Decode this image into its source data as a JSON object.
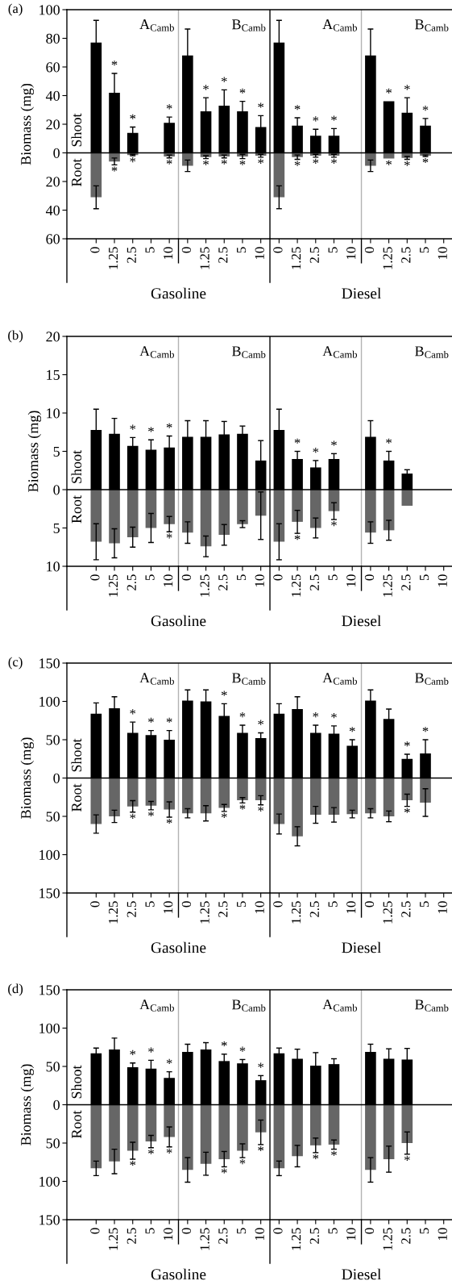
{
  "chart_data": [
    {
      "type": "bar",
      "title": "(a)",
      "ylabel": "Biomass (mg)",
      "stacked": true,
      "categories": [
        "0",
        "1.25",
        "2.5",
        "5",
        "10",
        "0",
        "1.25",
        "2.5",
        "5",
        "10",
        "0",
        "1.25",
        "2.5",
        "5",
        "10",
        "0",
        "1.25",
        "2.5",
        "5",
        "10"
      ],
      "ylim": [
        -60,
        100
      ],
      "yticks": [
        {
          "value": -60,
          "label": "60"
        },
        {
          "value": -40,
          "label": "40"
        },
        {
          "value": -20,
          "label": "20"
        },
        0,
        20,
        40,
        60,
        80,
        100
      ],
      "series": [
        {
          "name": "Shoot",
          "color": "#000000",
          "values": [
            77,
            42,
            14,
            null,
            21,
            68,
            29,
            33,
            29,
            18,
            77,
            19,
            12,
            12,
            null,
            68,
            36,
            28,
            19,
            null
          ],
          "errors": [
            15.5,
            13.5,
            4,
            null,
            4,
            18.5,
            9.5,
            11,
            7,
            8,
            15.5,
            5.5,
            4.5,
            5,
            null,
            18.5,
            null,
            10.5,
            5,
            null
          ],
          "value_labels": [
            null,
            "*",
            "*",
            null,
            "*",
            null,
            "*",
            "*",
            "*",
            "*",
            null,
            "*",
            "*",
            "*",
            null,
            null,
            "*",
            "*",
            "*",
            null
          ]
        },
        {
          "name": "Root",
          "color": "#666666",
          "values": [
            -31,
            -6,
            -1.5,
            null,
            -2.5,
            -9,
            -3,
            -2.5,
            -2.5,
            -2,
            -31,
            -3,
            -2,
            -2,
            null,
            -9,
            -4,
            -3.5,
            -2,
            null
          ],
          "errors": [
            8,
            2.4,
            0.5,
            null,
            1,
            4,
            1,
            1,
            1.5,
            1,
            8,
            1.5,
            1,
            1,
            null,
            4,
            null,
            1,
            0.5,
            null
          ],
          "value_labels": [
            null,
            "*",
            "*",
            null,
            "*",
            null,
            "*",
            "*",
            "*",
            "*",
            null,
            "*",
            "*",
            "*",
            null,
            null,
            "*",
            "*",
            "*",
            null
          ]
        }
      ],
      "ref_lines": [
        {
          "axis": "y",
          "value": 0,
          "color": "#000000"
        }
      ],
      "annotations": [
        "A$_{Camb}$",
        "B$_{Camb}$",
        "A$_{Camb}$",
        "B$_{Camb}$",
        "Gasoline",
        "Diesel"
      ]
    },
    {
      "type": "bar",
      "title": "(b)",
      "ylabel": "Biomass (mg)",
      "stacked": true,
      "categories": [
        "0",
        "1.25",
        "2.5",
        "5",
        "10",
        "0",
        "1.25",
        "2.5",
        "5",
        "10",
        "0",
        "1.25",
        "2.5",
        "5",
        "10",
        "0",
        "1.25",
        "2.5",
        "5",
        "10"
      ],
      "ylim": [
        -10,
        20
      ],
      "yticks": [
        {
          "value": -10,
          "label": "10"
        },
        {
          "value": -5,
          "label": "5"
        },
        0,
        5,
        10,
        15,
        20
      ],
      "series": [
        {
          "name": "Shoot",
          "color": "#000000",
          "values": [
            7.8,
            7.3,
            5.7,
            5.2,
            5.5,
            6.9,
            6.9,
            7.2,
            7.3,
            3.8,
            7.8,
            4.0,
            2.9,
            4.0,
            null,
            6.9,
            3.8,
            2.1,
            null,
            null
          ],
          "errors": [
            2.7,
            2.0,
            1.1,
            1.3,
            1.5,
            2.1,
            2.1,
            1.7,
            1.0,
            2.6,
            2.7,
            1.0,
            0.9,
            0.7,
            null,
            2.1,
            1.2,
            0.5,
            null,
            null
          ],
          "value_labels": [
            null,
            null,
            "*",
            "*",
            "*",
            null,
            null,
            null,
            null,
            null,
            null,
            "*",
            "*",
            "*",
            null,
            null,
            "*",
            null,
            null,
            null
          ]
        },
        {
          "name": "Root",
          "color": "#666666",
          "values": [
            -6.8,
            -7.0,
            -6.2,
            -5.0,
            -4.5,
            -5.6,
            -7.4,
            -5.9,
            -4.5,
            -3.4,
            -6.8,
            -4.2,
            -5.0,
            -2.8,
            null,
            -5.6,
            -5.3,
            -2.1,
            null,
            null
          ],
          "errors": [
            2.35,
            1.9,
            1.3,
            1.9,
            1.0,
            1.4,
            1.35,
            1.35,
            0.45,
            3.1,
            2.35,
            1.5,
            1.3,
            1.1,
            null,
            1.4,
            1.3,
            null,
            null,
            null
          ],
          "value_labels": [
            null,
            null,
            null,
            null,
            "*",
            null,
            null,
            null,
            null,
            null,
            null,
            "*",
            null,
            "*",
            null,
            null,
            null,
            null,
            null,
            null
          ]
        }
      ],
      "ref_lines": [
        {
          "axis": "y",
          "value": 0,
          "color": "#000000"
        }
      ],
      "annotations": [
        "A$_{Camb}$",
        "B$_{Camb}$",
        "A$_{Camb}$",
        "B$_{Camb}$",
        "Gasoline",
        "Diesel"
      ]
    },
    {
      "type": "bar",
      "title": "(c)",
      "ylabel": "Biomass (mg)",
      "stacked": true,
      "categories": [
        "0",
        "1.25",
        "2.5",
        "5",
        "10",
        "0",
        "1.25",
        "2.5",
        "5",
        "10",
        "0",
        "1.25",
        "2.5",
        "5",
        "10",
        "0",
        "1.25",
        "2.5",
        "5",
        "10"
      ],
      "ylim": [
        -150,
        150
      ],
      "yticks": [
        {
          "value": -150,
          "label": "150"
        },
        {
          "value": -100,
          "label": "100"
        },
        {
          "value": -50,
          "label": "50"
        },
        0,
        50,
        100,
        150
      ],
      "series": [
        {
          "name": "Shoot",
          "color": "#000000",
          "values": [
            84,
            91,
            59,
            56,
            50,
            101,
            100,
            81,
            59,
            52,
            84,
            90,
            59,
            58,
            42,
            101,
            77,
            25,
            32,
            null
          ],
          "errors": [
            14,
            15,
            14,
            6,
            12,
            14,
            15,
            16,
            10,
            7,
            13,
            16,
            10,
            10,
            8,
            14,
            13,
            6,
            18,
            null
          ],
          "value_labels": [
            null,
            null,
            "*",
            "*",
            "*",
            null,
            null,
            "*",
            "*",
            "*",
            null,
            null,
            "*",
            "*",
            "*",
            null,
            null,
            "*",
            "*",
            null
          ]
        },
        {
          "name": "Root",
          "color": "#666666",
          "values": [
            -60,
            -50,
            -37,
            -36,
            -41,
            -46,
            -46,
            -39,
            -29,
            -29,
            -60,
            -76,
            -48,
            -48,
            -47,
            -46,
            -50,
            -29,
            -32,
            null
          ],
          "errors": [
            12,
            8,
            7.5,
            5.5,
            10,
            6,
            10,
            4.5,
            3.5,
            6,
            13,
            12.5,
            11,
            9.5,
            5,
            6,
            7,
            8,
            18,
            null
          ],
          "value_labels": [
            null,
            null,
            "*",
            "*",
            "*",
            null,
            null,
            "*",
            "*",
            "*",
            null,
            null,
            null,
            null,
            null,
            null,
            null,
            "*",
            null,
            null
          ]
        }
      ],
      "ref_lines": [
        {
          "axis": "y",
          "value": 0,
          "color": "#000000"
        }
      ],
      "annotations": [
        "A$_{Camb}$",
        "B$_{Camb}$",
        "A$_{Camb}$",
        "B$_{Camb}$",
        "Gasoline",
        "Diesel"
      ]
    },
    {
      "type": "bar",
      "title": "(d)",
      "ylabel": "Biomass (mg)",
      "stacked": true,
      "categories": [
        "0",
        "1.25",
        "2.5",
        "5",
        "10",
        "0",
        "1.25",
        "2.5",
        "5",
        "10",
        "0",
        "1.25",
        "2.5",
        "5",
        "10",
        "0",
        "1.25",
        "2.5",
        "5",
        "10"
      ],
      "ylim": [
        -150,
        150
      ],
      "yticks": [
        {
          "value": -150,
          "label": "150"
        },
        {
          "value": -100,
          "label": "100"
        },
        {
          "value": -50,
          "label": "50"
        },
        0,
        50,
        100,
        150
      ],
      "series": [
        {
          "name": "Shoot",
          "color": "#000000",
          "values": [
            67,
            72,
            49,
            47,
            35,
            69,
            72,
            57,
            54,
            32,
            67,
            60,
            51,
            53,
            null,
            69,
            60,
            59,
            null,
            null
          ],
          "errors": [
            7,
            15,
            5.5,
            11,
            8,
            10,
            9,
            9,
            5,
            6,
            7,
            12.5,
            17,
            7,
            null,
            10,
            13,
            14.5,
            null,
            null
          ],
          "value_labels": [
            null,
            null,
            "*",
            "*",
            "*",
            null,
            null,
            "*",
            "*",
            "*",
            null,
            null,
            null,
            null,
            null,
            null,
            null,
            null,
            null,
            null
          ]
        },
        {
          "name": "Root",
          "color": "#666666",
          "values": [
            -83,
            -74,
            -60,
            -48,
            -42,
            -85,
            -77,
            -71,
            -60,
            -36,
            -83,
            -67,
            -53,
            -52,
            null,
            -85,
            -71,
            -50,
            null,
            null
          ],
          "errors": [
            9.5,
            16,
            11,
            8,
            13,
            16,
            15,
            10,
            9,
            16,
            9.5,
            14,
            9.5,
            6,
            null,
            16,
            17,
            14.5,
            null,
            null
          ],
          "value_labels": [
            null,
            null,
            "*",
            "*",
            "*",
            null,
            null,
            "*",
            "*",
            "*",
            null,
            null,
            "*",
            "*",
            null,
            null,
            null,
            "*",
            null,
            null
          ]
        }
      ],
      "ref_lines": [
        {
          "axis": "y",
          "value": 0,
          "color": "#000000"
        }
      ],
      "annotations": [
        "A$_{Camb}$",
        "B$_{Camb}$",
        "A$_{Camb}$",
        "B$_{Camb}$",
        "Gasoline",
        "Diesel"
      ]
    }
  ]
}
